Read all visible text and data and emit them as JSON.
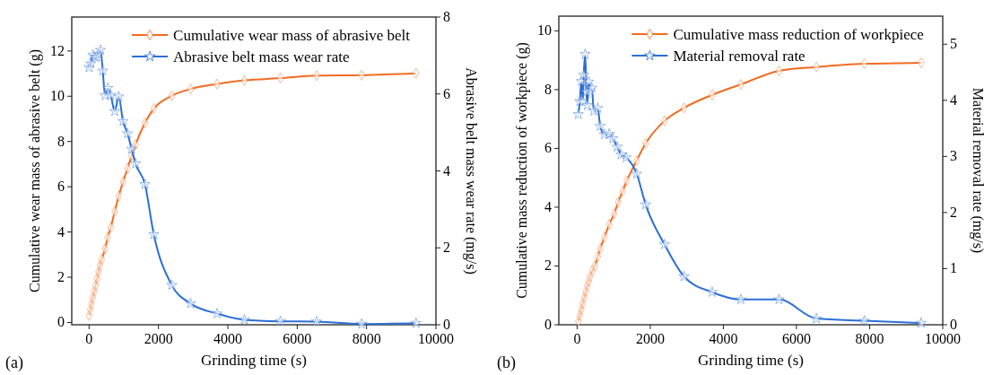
{
  "chart_data": [
    {
      "type": "line",
      "xlabel": "Grinding time (s)",
      "ylabel": "Cumulative wear mass of abrasive belt (g)",
      "y2label": "Abrasive belt mass wear rate (mg/s)",
      "annotations": [
        "(a)"
      ],
      "xlim": [
        -500,
        10000
      ],
      "xticks": [
        0,
        2000,
        4000,
        6000,
        8000,
        10000
      ],
      "ylim": [
        -0.1,
        13.5
      ],
      "yticks": [
        0,
        2,
        4,
        6,
        8,
        10,
        12
      ],
      "y2lim": [
        0,
        8
      ],
      "y2ticks": [
        0,
        2,
        4,
        6,
        8
      ],
      "legend": "top right",
      "grid": false,
      "series": [
        {
          "name": "Cumulative wear mass of abrasive belt",
          "color": "#f26b21",
          "marker": "diamond",
          "x": [
            0,
            33,
            66,
            107,
            148,
            189,
            230,
            271,
            312,
            362,
            460,
            534,
            624,
            739,
            854,
            978,
            1109,
            1224,
            1339,
            1610,
            1865,
            2383,
            2925,
            3690,
            4479,
            5514,
            6558,
            7856,
            9425
          ],
          "values": [
            0.31,
            0.57,
            0.83,
            1.09,
            1.38,
            1.64,
            1.94,
            2.24,
            2.53,
            2.79,
            3.25,
            3.76,
            4.2,
            4.91,
            5.59,
            6.22,
            6.81,
            7.36,
            7.86,
            8.82,
            9.45,
            10.02,
            10.32,
            10.54,
            10.7,
            10.8,
            10.91,
            10.93,
            11.01
          ]
        },
        {
          "name": "Abrasive belt mass wear rate",
          "color": "#2c6fd6",
          "marker": "star",
          "axis": "y2",
          "x": [
            0,
            49,
            107,
            164,
            214,
            271,
            329,
            394,
            460,
            542,
            624,
            739,
            854,
            978,
            1109,
            1224,
            1339,
            1610,
            1865,
            2383,
            2925,
            3690,
            4479,
            5514,
            6558,
            7856,
            9425
          ],
          "values": [
            6.69,
            6.79,
            7.01,
            6.96,
            6.96,
            7.03,
            7.14,
            6.6,
            5.96,
            6.15,
            5.97,
            5.55,
            5.93,
            5.29,
            4.97,
            4.57,
            4.19,
            3.65,
            2.35,
            1.03,
            0.55,
            0.29,
            0.13,
            0.09,
            0.08,
            0.02,
            0.04
          ]
        }
      ]
    },
    {
      "type": "line",
      "xlabel": "Grinding time (s)",
      "ylabel": "Cumulative mass reduction of workpiece (g)",
      "y2label": "Material removal rate (mg/s)",
      "annotations": [
        "(b)"
      ],
      "xlim": [
        -500,
        10000
      ],
      "xticks": [
        0,
        2000,
        4000,
        6000,
        8000,
        10000
      ],
      "ylim": [
        0,
        10.5
      ],
      "yticks": [
        0,
        2,
        4,
        6,
        8,
        10
      ],
      "y2lim": [
        0,
        5.5
      ],
      "y2ticks": [
        0,
        1,
        2,
        3,
        4,
        5
      ],
      "legend": "top right",
      "grid": false,
      "series": [
        {
          "name": "Cumulative mass reduction of workpiece",
          "color": "#f26b21",
          "marker": "diamond",
          "x": [
            33,
            74,
            115,
            156,
            197,
            238,
            279,
            319,
            360,
            418,
            483,
            565,
            631,
            745,
            876,
            1016,
            1122,
            1245,
            1360,
            1630,
            1875,
            2391,
            2924,
            3694,
            4480,
            5520,
            6544,
            7854,
            9410
          ],
          "values": [
            0.12,
            0.33,
            0.53,
            0.73,
            0.93,
            1.14,
            1.34,
            1.49,
            1.65,
            1.85,
            2.0,
            2.31,
            2.59,
            2.97,
            3.41,
            3.78,
            4.17,
            4.55,
            4.9,
            5.59,
            6.17,
            6.94,
            7.38,
            7.82,
            8.18,
            8.64,
            8.77,
            8.88,
            8.91
          ]
        },
        {
          "name": "Material removal rate",
          "color": "#2c6fd6",
          "marker": "star",
          "axis": "y2",
          "x": [
            33,
            74,
            115,
            156,
            180,
            221,
            254,
            279,
            319,
            360,
            401,
            459,
            565,
            631,
            745,
            876,
            975,
            1098,
            1204,
            1343,
            1630,
            1875,
            2391,
            2924,
            3694,
            4480,
            5520,
            6544,
            7854,
            9410
          ],
          "values": [
            3.75,
            3.98,
            4.34,
            3.98,
            4.45,
            4.82,
            4.15,
            3.91,
            4.33,
            4.17,
            4.22,
            3.81,
            3.86,
            3.54,
            3.39,
            3.4,
            3.32,
            3.17,
            3.03,
            2.98,
            2.69,
            2.14,
            1.43,
            0.86,
            0.58,
            0.45,
            0.45,
            0.11,
            0.07,
            0.03
          ]
        }
      ]
    }
  ]
}
